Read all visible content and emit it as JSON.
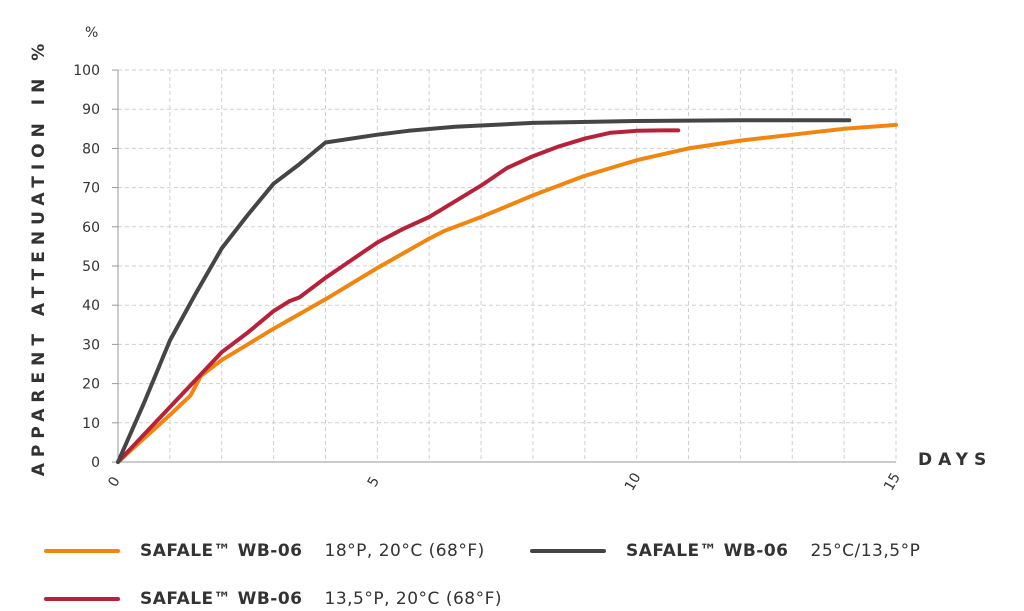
{
  "chart_data": {
    "type": "line",
    "unit_label": "%",
    "ylabel": "APPARENT ATTENUATION IN %",
    "xlabel": "DAYS",
    "ylim": [
      0,
      100
    ],
    "xlim": [
      0,
      15
    ],
    "y_ticks": [
      "0",
      "10",
      "20",
      "30",
      "40",
      "50",
      "60",
      "70",
      "80",
      "90",
      "100"
    ],
    "x_ticks": [
      "0",
      "5",
      "10",
      "15"
    ],
    "grid": true,
    "legend_position": "bottom",
    "series": [
      {
        "name": "SAFALE™ WB-06",
        "condition": "18°P, 20°C (68°F)",
        "color": "#F0860F",
        "points": [
          [
            0,
            0
          ],
          [
            0.5,
            6
          ],
          [
            1,
            12
          ],
          [
            1.4,
            17
          ],
          [
            1.6,
            22
          ],
          [
            2,
            26
          ],
          [
            2.5,
            30
          ],
          [
            3,
            34
          ],
          [
            4,
            41.5
          ],
          [
            5,
            49.5
          ],
          [
            6,
            57
          ],
          [
            6.3,
            59
          ],
          [
            7,
            62.5
          ],
          [
            8,
            68
          ],
          [
            9,
            73
          ],
          [
            9.5,
            75
          ],
          [
            10,
            77
          ],
          [
            11,
            80
          ],
          [
            12,
            82
          ],
          [
            13,
            83.5
          ],
          [
            14,
            85
          ],
          [
            15,
            86
          ]
        ]
      },
      {
        "name": "SAFALE™ WB-06",
        "condition": "13,5°P, 20°C (68°F)",
        "color": "#B5223A",
        "points": [
          [
            0,
            0
          ],
          [
            0.5,
            7
          ],
          [
            1,
            14
          ],
          [
            1.5,
            21
          ],
          [
            2,
            28
          ],
          [
            2.5,
            33
          ],
          [
            3,
            38.5
          ],
          [
            3.3,
            41
          ],
          [
            3.5,
            42
          ],
          [
            4,
            47
          ],
          [
            4.5,
            51.5
          ],
          [
            5,
            56
          ],
          [
            5.5,
            59.5
          ],
          [
            6,
            62.5
          ],
          [
            6.5,
            66.5
          ],
          [
            7,
            70.5
          ],
          [
            7.5,
            75
          ],
          [
            8,
            78
          ],
          [
            8.5,
            80.5
          ],
          [
            9,
            82.5
          ],
          [
            9.5,
            84
          ],
          [
            10,
            84.5
          ],
          [
            10.5,
            84.6
          ],
          [
            10.8,
            84.6
          ]
        ]
      },
      {
        "name": "SAFALE™ WB-06",
        "condition": "25°C/13,5°P",
        "color": "#454545",
        "points": [
          [
            0,
            0
          ],
          [
            0.5,
            15
          ],
          [
            1,
            31
          ],
          [
            1.5,
            43
          ],
          [
            2,
            54.5
          ],
          [
            2.5,
            63
          ],
          [
            3,
            71
          ],
          [
            3.5,
            76
          ],
          [
            4,
            81.5
          ],
          [
            5,
            83.5
          ],
          [
            5.6,
            84.5
          ],
          [
            6.5,
            85.5
          ],
          [
            8,
            86.5
          ],
          [
            10,
            87
          ],
          [
            12,
            87.2
          ],
          [
            14,
            87.2
          ],
          [
            14.1,
            87.2
          ]
        ]
      }
    ]
  }
}
